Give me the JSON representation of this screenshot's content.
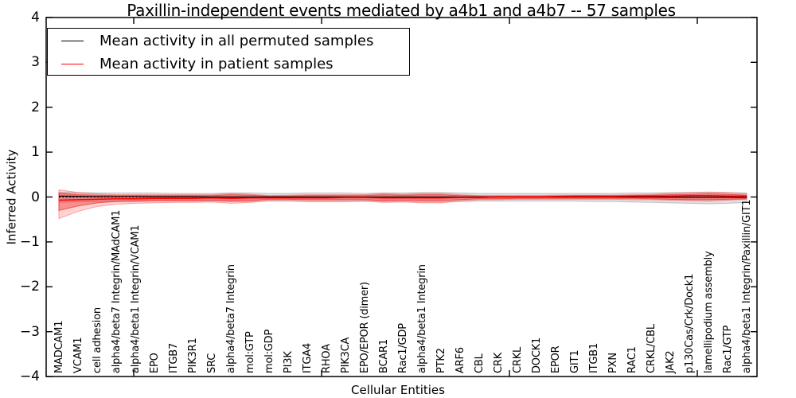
{
  "chart_data": {
    "type": "line",
    "title": "Paxillin-independent events mediated by a4b1 and a4b7 -- 57 samples",
    "xlabel": "Cellular Entities",
    "ylabel": "Inferred Activity",
    "ylim": [
      -4,
      4
    ],
    "ytick_labels": [
      "4",
      "3",
      "2",
      "1",
      "0",
      "−1",
      "−2",
      "−3",
      "−4"
    ],
    "ytick_values": [
      4,
      3,
      2,
      1,
      0,
      -1,
      -2,
      -3,
      -4
    ],
    "grid": false,
    "legend_position": "upper left",
    "categories": [
      "MADCAM1",
      "VCAM1",
      "cell adhesion",
      "alpha4/beta7 Integrin/MAdCAM1",
      "alpha4/beta1 Integrin/VCAM1",
      "EPO",
      "ITGB7",
      "PIK3R1",
      "SRC",
      "alpha4/beta7 Integrin",
      "mol:GTP",
      "mol:GDP",
      "PI3K",
      "ITGA4",
      "RHOA",
      "PIK3CA",
      "EPO/EPOR (dimer)",
      "BCAR1",
      "Rac1/GDP",
      "alpha4/beta1 Integrin",
      "PTK2",
      "ARF6",
      "CBL",
      "CRK",
      "CRKL",
      "DOCK1",
      "EPOR",
      "GIT1",
      "ITGB1",
      "PXN",
      "RAC1",
      "CRKL/CBL",
      "JAK2",
      "p130Cas/Crk/Dock1",
      "lamellipodium assembly",
      "Rac1/GTP",
      "alpha4/beta1 Integrin/Paxillin/GIT1"
    ],
    "series": [
      {
        "name": "Mean activity in all permuted samples",
        "color": "#000000",
        "style": "solid",
        "values": [
          0.02,
          0.015,
          0.01,
          0.01,
          0.01,
          0.005,
          0.005,
          0.005,
          0,
          0,
          0,
          0,
          0,
          0,
          0,
          0,
          0,
          0,
          0,
          0,
          0,
          0,
          0,
          0,
          0,
          0,
          0,
          0,
          0,
          0,
          0,
          0,
          -0.005,
          -0.005,
          -0.005,
          -0.005,
          -0.01
        ]
      },
      {
        "name": "Mean activity in patient samples",
        "color": "#ff0000",
        "style": "solid",
        "values": [
          -0.07,
          -0.06,
          -0.05,
          -0.04,
          -0.04,
          -0.03,
          -0.03,
          -0.03,
          -0.02,
          -0.03,
          -0.02,
          -0.02,
          -0.02,
          -0.02,
          -0.02,
          -0.01,
          -0.01,
          -0.02,
          -0.02,
          -0.02,
          -0.02,
          -0.01,
          -0.01,
          0,
          0,
          0,
          0.01,
          0.01,
          0.01,
          0.01,
          0.02,
          0.02,
          0.02,
          0.03,
          0.03,
          0.02,
          0.02
        ]
      },
      {
        "name": "zero reference",
        "color": "#000000",
        "style": "dotted",
        "values": [
          0,
          0,
          0,
          0,
          0,
          0,
          0,
          0,
          0,
          0,
          0,
          0,
          0,
          0,
          0,
          0,
          0,
          0,
          0,
          0,
          0,
          0,
          0,
          0,
          0,
          0,
          0,
          0,
          0,
          0,
          0,
          0,
          0,
          0,
          0,
          0,
          0
        ]
      }
    ],
    "bands": [
      {
        "name": "permuted samples range",
        "color": "#999999",
        "opacity": 0.3,
        "upper": [
          0.1,
          0.1,
          0.09,
          0.09,
          0.09,
          0.09,
          0.08,
          0.08,
          0.08,
          0.09,
          0.09,
          0.08,
          0.08,
          0.09,
          0.09,
          0.09,
          0.08,
          0.09,
          0.09,
          0.1,
          0.1,
          0.09,
          0.08,
          0.08,
          0.08,
          0.08,
          0.08,
          0.08,
          0.08,
          0.08,
          0.09,
          0.09,
          0.1,
          0.1,
          0.1,
          0.1,
          0.09
        ],
        "lower": [
          -0.12,
          -0.11,
          -0.1,
          -0.1,
          -0.1,
          -0.09,
          -0.09,
          -0.09,
          -0.09,
          -0.1,
          -0.1,
          -0.09,
          -0.09,
          -0.1,
          -0.1,
          -0.1,
          -0.09,
          -0.1,
          -0.1,
          -0.11,
          -0.11,
          -0.1,
          -0.09,
          -0.09,
          -0.09,
          -0.09,
          -0.09,
          -0.09,
          -0.1,
          -0.1,
          -0.11,
          -0.12,
          -0.13,
          -0.14,
          -0.15,
          -0.14,
          -0.12
        ]
      },
      {
        "name": "patient samples range (outer)",
        "color": "#ff5050",
        "opacity": 0.25,
        "upper": [
          0.16,
          0.1,
          0.07,
          0.05,
          0.05,
          0.05,
          0.05,
          0.05,
          0.05,
          0.08,
          0.06,
          0.03,
          0.04,
          0.05,
          0.05,
          0.05,
          0.05,
          0.08,
          0.06,
          0.08,
          0.08,
          0.05,
          0.03,
          0.03,
          0.03,
          0.03,
          0.04,
          0.04,
          0.04,
          0.04,
          0.05,
          0.06,
          0.08,
          0.1,
          0.11,
          0.1,
          0.07
        ],
        "lower": [
          -0.48,
          -0.32,
          -0.21,
          -0.16,
          -0.14,
          -0.13,
          -0.12,
          -0.12,
          -0.11,
          -0.14,
          -0.12,
          -0.08,
          -0.08,
          -0.1,
          -0.1,
          -0.1,
          -0.09,
          -0.12,
          -0.11,
          -0.13,
          -0.13,
          -0.09,
          -0.06,
          -0.06,
          -0.05,
          -0.05,
          -0.05,
          -0.05,
          -0.05,
          -0.05,
          -0.06,
          -0.06,
          -0.07,
          -0.08,
          -0.09,
          -0.07,
          -0.05
        ]
      },
      {
        "name": "patient samples range (inner)",
        "color": "#ee2020",
        "opacity": 0.38,
        "upper": [
          0.09,
          0.05,
          0.04,
          0.03,
          0.03,
          0.03,
          0.03,
          0.03,
          0.03,
          0.05,
          0.04,
          0.02,
          0.02,
          0.03,
          0.03,
          0.03,
          0.03,
          0.05,
          0.04,
          0.05,
          0.05,
          0.03,
          0.02,
          0.02,
          0.02,
          0.02,
          0.02,
          0.03,
          0.03,
          0.03,
          0.03,
          0.04,
          0.05,
          0.06,
          0.07,
          0.06,
          0.04
        ],
        "lower": [
          -0.3,
          -0.2,
          -0.13,
          -0.1,
          -0.09,
          -0.08,
          -0.08,
          -0.08,
          -0.07,
          -0.09,
          -0.08,
          -0.05,
          -0.05,
          -0.06,
          -0.06,
          -0.06,
          -0.06,
          -0.08,
          -0.07,
          -0.08,
          -0.08,
          -0.06,
          -0.04,
          -0.04,
          -0.03,
          -0.03,
          -0.03,
          -0.03,
          -0.03,
          -0.03,
          -0.03,
          -0.04,
          -0.05,
          -0.06,
          -0.06,
          -0.05,
          -0.04
        ]
      }
    ]
  }
}
